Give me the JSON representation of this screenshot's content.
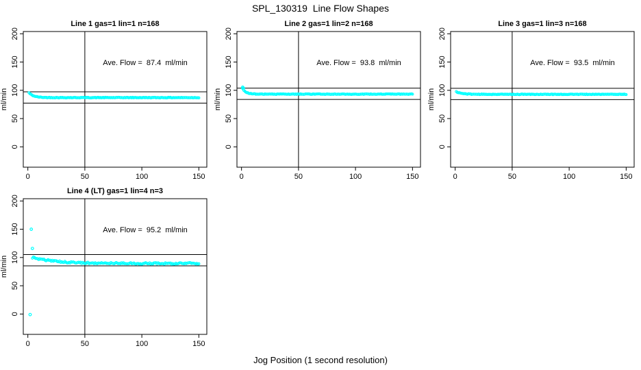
{
  "page": {
    "main_title": "SPL_130319  Line Flow Shapes",
    "x_axis_label": "Jog Position (1 second resolution)"
  },
  "chart_data": {
    "type": "scatter",
    "title": "SPL_130319  Line Flow Shapes",
    "xlabel": "Jog Position (1 second resolution)",
    "y_axis_label": "ml/min",
    "x_ticks": [
      0,
      50,
      100,
      150
    ],
    "y_ticks": [
      0,
      50,
      100,
      150,
      200
    ],
    "x_domain": [
      -4,
      157
    ],
    "y_domain": [
      -36,
      204
    ],
    "vline_x": 50,
    "point_color": "#00FFFF",
    "line_color": "#000000",
    "legend": "none",
    "grid": "off",
    "layout": {
      "rows": 2,
      "cols": 3,
      "panels_used": [
        1,
        2,
        3,
        4
      ]
    },
    "annotation_data_pos": {
      "x": 103,
      "y": 150
    },
    "panels": [
      {
        "title": "Line 1 gas=1 lin=1 n=168",
        "ave_flow": 87.4,
        "annotation": "Ave. Flow =  87.4  ml/min",
        "n": 168,
        "ref_lines": [
          97.4,
          77.4
        ],
        "series_model": {
          "asymptote": 87.1,
          "amplitude": 11,
          "tau": 4,
          "jitter": 0.5,
          "x_start": 1,
          "x_end": 150,
          "n_points": 168
        },
        "sample_points": [
          [
            1,
            96
          ],
          [
            2,
            93
          ],
          [
            4,
            91
          ],
          [
            6,
            89
          ],
          [
            10,
            88
          ],
          [
            20,
            87.5
          ],
          [
            40,
            87.3
          ],
          [
            60,
            87.3
          ],
          [
            80,
            87.2
          ],
          [
            100,
            87.2
          ],
          [
            120,
            87.2
          ],
          [
            150,
            87.2
          ]
        ],
        "outliers": []
      },
      {
        "title": "Line 2 gas=1 lin=2 n=168",
        "ave_flow": 93.8,
        "annotation": "Ave. Flow =  93.8  ml/min",
        "n": 168,
        "ref_lines": [
          103.8,
          83.8
        ],
        "series_model": {
          "asymptote": 93.2,
          "amplitude": 13,
          "tau": 3.2,
          "jitter": 0.5,
          "x_start": 1,
          "x_end": 150,
          "n_points": 168
        },
        "sample_points": [
          [
            1,
            105
          ],
          [
            2,
            101
          ],
          [
            3,
            99
          ],
          [
            5,
            96
          ],
          [
            8,
            94.5
          ],
          [
            15,
            93.5
          ],
          [
            30,
            93.2
          ],
          [
            60,
            93.2
          ],
          [
            100,
            93.2
          ],
          [
            150,
            93.2
          ]
        ],
        "outliers": [
          [
            1,
            105.5
          ],
          [
            1.6,
            104
          ]
        ]
      },
      {
        "title": "Line 3 gas=1 lin=3 n=168",
        "ave_flow": 93.5,
        "annotation": "Ave. Flow =  93.5  ml/min",
        "n": 168,
        "ref_lines": [
          103.5,
          83.5
        ],
        "series_model": {
          "asymptote": 92.9,
          "amplitude": 5.5,
          "tau": 5,
          "jitter": 0.5,
          "x_start": 1,
          "x_end": 150,
          "n_points": 168
        },
        "sample_points": [
          [
            1,
            97
          ],
          [
            3,
            95.5
          ],
          [
            6,
            94.5
          ],
          [
            10,
            93.5
          ],
          [
            20,
            93
          ],
          [
            50,
            93
          ],
          [
            100,
            93
          ],
          [
            150,
            92.9
          ]
        ],
        "outliers": []
      },
      {
        "title": "Line 4 (LT) gas=1 lin=4 n=3",
        "ave_flow": 95.2,
        "annotation": "Ave. Flow =  95.2  ml/min",
        "n": 3,
        "ref_lines": [
          105.2,
          85.2
        ],
        "series_model": {
          "asymptote": 89.5,
          "amplitude": 13,
          "tau": 20,
          "jitter": 1.4,
          "x_start": 4,
          "x_end": 150,
          "n_points": 160
        },
        "sample_points": [
          [
            2,
            -1
          ],
          [
            3,
            150
          ],
          [
            4,
            116
          ],
          [
            5,
            100
          ],
          [
            8,
            97
          ],
          [
            15,
            95
          ],
          [
            30,
            92
          ],
          [
            60,
            91
          ],
          [
            100,
            90.5
          ],
          [
            150,
            89.5
          ]
        ],
        "outliers": [
          [
            3,
            150
          ],
          [
            4,
            116
          ],
          [
            2,
            -1
          ]
        ]
      }
    ]
  }
}
